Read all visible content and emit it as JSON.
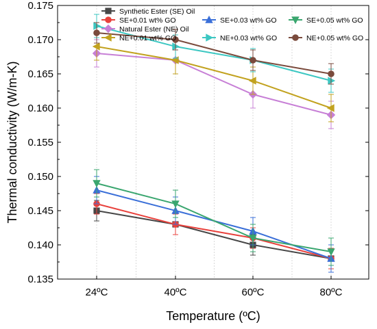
{
  "chart_data": {
    "type": "line",
    "categories": [
      "24ºC",
      "40ºC",
      "60ºC",
      "80ºC"
    ],
    "xlabel": "Temperature (ºC)",
    "ylabel": "Thermal conductivity (W/m-K)",
    "ylim": [
      0.135,
      0.175
    ],
    "yticks": [
      "0.135",
      "0.140",
      "0.145",
      "0.150",
      "0.155",
      "0.160",
      "0.165",
      "0.170",
      "0.175"
    ],
    "grid": true,
    "legend_position": "top",
    "series": [
      {
        "name": "Synthetic Ester (SE) Oil",
        "color": "#474747",
        "marker": "square",
        "values": [
          0.145,
          0.143,
          0.14,
          0.138
        ],
        "errors": [
          0.0015,
          0.0015,
          0.0015,
          0.0015
        ]
      },
      {
        "name": "SE+0.01 wt% GO",
        "color": "#e8413c",
        "marker": "circle",
        "values": [
          0.146,
          0.143,
          0.141,
          0.138
        ],
        "errors": [
          0.0015,
          0.0015,
          0.0015,
          0.0015
        ]
      },
      {
        "name": "SE+0.03 wt% GO",
        "color": "#3a6fd8",
        "marker": "triangle-up",
        "values": [
          0.148,
          0.145,
          0.142,
          0.138
        ],
        "errors": [
          0.002,
          0.002,
          0.002,
          0.002
        ]
      },
      {
        "name": "SE+0.05 wt% GO",
        "color": "#3aa66f",
        "marker": "triangle-down",
        "values": [
          0.149,
          0.146,
          0.141,
          0.139
        ],
        "errors": [
          0.002,
          0.002,
          0.002,
          0.002
        ]
      },
      {
        "name": "Natural Ester (NE) Oil",
        "color": "#c77fd6",
        "marker": "diamond",
        "values": [
          0.168,
          0.167,
          0.162,
          0.159
        ],
        "errors": [
          0.002,
          0.002,
          0.002,
          0.002
        ]
      },
      {
        "name": "NE+0.01 wt% GO",
        "color": "#c2a21f",
        "marker": "triangle-left",
        "values": [
          0.169,
          0.167,
          0.164,
          0.16
        ],
        "errors": [
          0.002,
          0.002,
          0.002,
          0.002
        ]
      },
      {
        "name": "NE+0.03 wt% GO",
        "color": "#3cc7c2",
        "marker": "triangle-right",
        "values": [
          0.172,
          0.169,
          0.167,
          0.164
        ],
        "errors": [
          0.0017,
          0.0017,
          0.0017,
          0.0017
        ]
      },
      {
        "name": "NE+0.05 wt% GO",
        "color": "#7a4a3c",
        "marker": "circle",
        "values": [
          0.171,
          0.17,
          0.167,
          0.165
        ],
        "errors": [
          0.0015,
          0.0015,
          0.0015,
          0.0015
        ]
      }
    ]
  }
}
